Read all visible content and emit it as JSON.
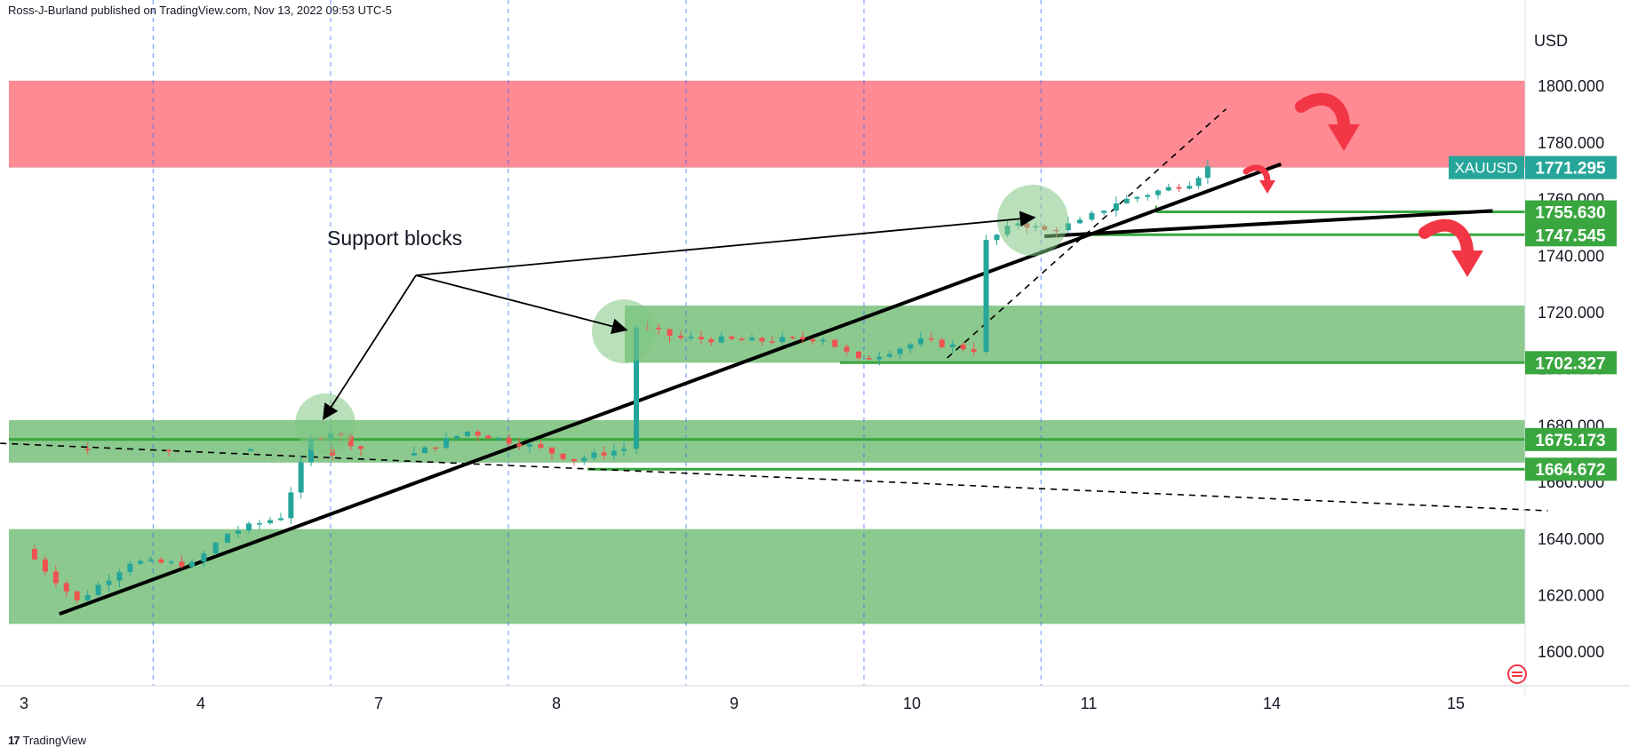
{
  "header": {
    "text": "Ross-J-Burland published on TradingView.com, Nov 13, 2022 09:53 UTC-5"
  },
  "footer": {
    "brand": "TradingView",
    "logo": "17"
  },
  "colors": {
    "up": "#26a69a",
    "down": "#ef5350",
    "resistance_zone": "#fe8a94",
    "support_zone": "#8bc98e",
    "support_line": "#3aa63f",
    "trendline": "#000000",
    "arrow": "#f23645",
    "vline": "#2962ff"
  },
  "chart_data": {
    "type": "candlestick",
    "symbol": "XAUUSD",
    "currency": "USD",
    "ylim": [
      1585,
      1812
    ],
    "y_ticks": [
      "1800.000",
      "1780.000",
      "1760.000",
      "1740.000",
      "1720.000",
      "1700.000",
      "1680.000",
      "1660.000",
      "1640.000",
      "1620.000",
      "1600.000"
    ],
    "x_ticks": [
      "3",
      "4",
      "7",
      "8",
      "9",
      "10",
      "11",
      "14",
      "15"
    ],
    "last_price": {
      "label": "XAUUSD",
      "value": "1771.295",
      "price": 1771.295
    },
    "price_tags": [
      {
        "value": "1755.630",
        "price": 1755.63
      },
      {
        "value": "1747.545",
        "price": 1747.545
      },
      {
        "value": "1702.327",
        "price": 1702.327
      },
      {
        "value": "1675.173",
        "price": 1675.173
      },
      {
        "value": "1664.672",
        "price": 1664.672
      }
    ],
    "zones": [
      {
        "kind": "resistance",
        "from": 1771.3,
        "to": 1802
      },
      {
        "kind": "support",
        "from": 1702.3,
        "to": 1722.5
      },
      {
        "kind": "support",
        "from": 1667,
        "to": 1682
      },
      {
        "kind": "support",
        "from": 1610,
        "to": 1643.5
      }
    ],
    "annotations": {
      "support_label": "Support blocks"
    },
    "session_points": [
      [
        3.0,
        1636.5
      ],
      [
        3.3,
        1618
      ],
      [
        3.6,
        1632
      ],
      [
        3.95,
        1631
      ],
      [
        4.15,
        1642
      ],
      [
        4.45,
        1648
      ],
      [
        4.62,
        1675
      ],
      [
        4.73,
        1678
      ],
      [
        4.9,
        1672
      ],
      [
        7.2,
        1670
      ],
      [
        7.5,
        1678
      ],
      [
        7.85,
        1673
      ],
      [
        8.1,
        1668
      ],
      [
        8.38,
        1672
      ],
      [
        8.45,
        1715
      ],
      [
        8.7,
        1711
      ],
      [
        9.1,
        1710
      ],
      [
        9.5,
        1711
      ],
      [
        9.7,
        1703
      ],
      [
        10.05,
        1710
      ],
      [
        10.35,
        1707
      ],
      [
        10.42,
        1745
      ],
      [
        10.6,
        1752
      ],
      [
        10.75,
        1749
      ],
      [
        10.95,
        1752
      ],
      [
        11.15,
        1759
      ],
      [
        11.55,
        1766
      ],
      [
        11.65,
        1771.3
      ]
    ],
    "trendlines": [
      {
        "style": "solid",
        "from": [
          3.2,
          1613.5
        ],
        "to": [
          14.05,
          1772.5
        ]
      },
      {
        "style": "solid",
        "from": [
          10.75,
          1747
        ],
        "to": [
          15.2,
          1756
        ]
      },
      {
        "style": "dashed",
        "from": [
          2.8,
          1674
        ],
        "to": [
          15.5,
          1650
        ]
      },
      {
        "style": "dashed",
        "from": [
          10.2,
          1704
        ],
        "to": [
          11.75,
          1792
        ]
      }
    ],
    "grid_vlines_dashed": [
      3.73,
      4.73,
      7.73,
      8.73,
      9.73,
      10.73
    ]
  }
}
